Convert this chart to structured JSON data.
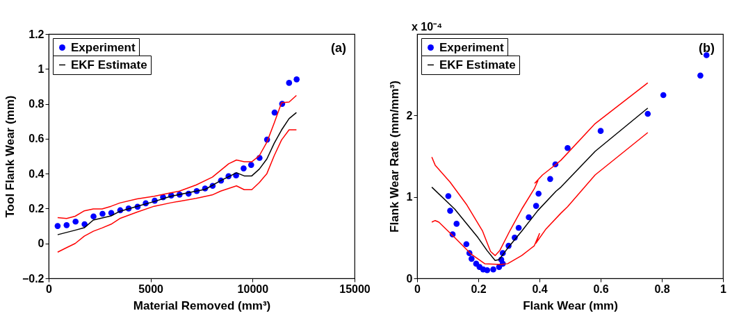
{
  "chart_data": [
    {
      "type": "line",
      "xlabel": "Material Removed (mm³)",
      "ylabel": "Tool Flank Wear (mm)",
      "annotations": [
        "(a)"
      ],
      "xlim": [
        0,
        15000
      ],
      "xticks": [
        0,
        5000,
        10000,
        15000
      ],
      "ylim": [
        -0.2,
        1.2
      ],
      "yticks": [
        -0.2,
        0,
        0.2,
        0.4,
        0.6,
        0.8,
        1,
        1.2
      ],
      "grid": false,
      "legend": "top left",
      "series": [
        {
          "name": "Experiment",
          "type": "scatter",
          "color": "#0000ff",
          "x": [
            440,
            880,
            1320,
            1760,
            2200,
            2640,
            3070,
            3510,
            3920,
            4360,
            4760,
            5200,
            5610,
            6010,
            6420,
            6860,
            7260,
            7670,
            8040,
            8450,
            8820,
            9190,
            9560,
            9930,
            10340,
            10710,
            11080,
            11450,
            11790,
            12160
          ],
          "values": [
            0.1,
            0.105,
            0.125,
            0.11,
            0.155,
            0.17,
            0.175,
            0.19,
            0.2,
            0.21,
            0.23,
            0.245,
            0.265,
            0.275,
            0.28,
            0.285,
            0.3,
            0.315,
            0.33,
            0.36,
            0.385,
            0.39,
            0.43,
            0.45,
            0.49,
            0.595,
            0.75,
            0.8,
            0.92,
            0.94
          ]
        },
        {
          "name": "EKF Estimate",
          "color": "#000000",
          "x": [
            440,
            1300,
            1750,
            2190,
            3060,
            3490,
            4340,
            5170,
            5990,
            6820,
            7680,
            8440,
            9210,
            9590,
            9960,
            10330,
            10700,
            11060,
            11420,
            11790,
            12150
          ],
          "values": [
            0.05,
            0.076,
            0.09,
            0.134,
            0.158,
            0.184,
            0.213,
            0.24,
            0.27,
            0.29,
            0.31,
            0.36,
            0.405,
            0.387,
            0.387,
            0.426,
            0.484,
            0.574,
            0.65,
            0.715,
            0.75
          ]
        },
        {
          "color": "#ff0000",
          "x": [
            440,
            880,
            1300,
            1750,
            2190,
            2620,
            3060,
            3490,
            4340,
            5170,
            5990,
            6420,
            7230,
            8030,
            8830,
            9210,
            9590,
            9960,
            10330,
            10700,
            11060,
            11420,
            11790,
            12150
          ],
          "values": [
            0.148,
            0.143,
            0.156,
            0.187,
            0.198,
            0.198,
            0.213,
            0.232,
            0.255,
            0.27,
            0.29,
            0.3,
            0.335,
            0.38,
            0.457,
            0.478,
            0.468,
            0.468,
            0.503,
            0.58,
            0.69,
            0.806,
            0.81,
            0.848
          ]
        },
        {
          "color": "#ff0000",
          "x": [
            440,
            880,
            1300,
            1750,
            2190,
            2620,
            3060,
            3490,
            4340,
            5170,
            5990,
            7230,
            8020,
            8440,
            9210,
            9590,
            9960,
            10330,
            10700,
            11060,
            11420,
            11790,
            12150
          ],
          "values": [
            -0.05,
            -0.024,
            0,
            0.042,
            0.07,
            0.089,
            0.11,
            0.143,
            0.18,
            0.213,
            0.233,
            0.258,
            0.278,
            0.3,
            0.33,
            0.308,
            0.308,
            0.349,
            0.4,
            0.503,
            0.593,
            0.651,
            0.651
          ]
        }
      ]
    },
    {
      "type": "line",
      "xlabel": "Flank Wear (mm)",
      "ylabel": "Flank Wear Rate (mm/mm³)",
      "annotations": [
        "x 10⁻⁴",
        "(b)"
      ],
      "xlim": [
        0,
        1
      ],
      "xticks": [
        0,
        0.2,
        0.4,
        0.6,
        0.8,
        1
      ],
      "ylim": [
        0,
        3
      ],
      "yticks": [
        0,
        1,
        2
      ],
      "grid": false,
      "legend": "top left",
      "series": [
        {
          "name": "Experiment",
          "type": "scatter",
          "color": "#0000ff",
          "x": [
            0.102,
            0.108,
            0.116,
            0.129,
            0.161,
            0.171,
            0.178,
            0.193,
            0.204,
            0.216,
            0.229,
            0.249,
            0.268,
            0.28,
            0.275,
            0.28,
            0.299,
            0.319,
            0.332,
            0.365,
            0.389,
            0.397,
            0.435,
            0.452,
            0.492,
            0.6,
            0.754,
            0.805,
            0.926,
            0.946
          ],
          "values": [
            1.01,
            0.83,
            0.54,
            0.67,
            0.42,
            0.31,
            0.24,
            0.18,
            0.14,
            0.11,
            0.1,
            0.11,
            0.14,
            0.18,
            0.23,
            0.31,
            0.4,
            0.5,
            0.62,
            0.75,
            0.89,
            1.04,
            1.22,
            1.4,
            1.6,
            1.81,
            2.02,
            2.25,
            2.49,
            2.74
          ]
        },
        {
          "name": "EKF Estimate",
          "color": "#000000",
          "x": [
            0.048,
            0.123,
            0.199,
            0.229,
            0.255,
            0.268,
            0.296,
            0.342,
            0.394,
            0.454,
            0.47,
            0.582,
            0.754
          ],
          "values": [
            1.12,
            0.85,
            0.5,
            0.34,
            0.22,
            0.23,
            0.37,
            0.58,
            0.83,
            1.07,
            1.12,
            1.56,
            2.09
          ]
        },
        {
          "color": "#ff0000",
          "x": [
            0.048,
            0.059,
            0.108,
            0.161,
            0.214,
            0.24,
            0.255,
            0.27,
            0.304,
            0.342,
            0.383,
            0.395,
            0.385,
            0.41,
            0.454,
            0.47,
            0.582,
            0.754
          ],
          "values": [
            1.49,
            1.39,
            1.18,
            0.91,
            0.58,
            0.33,
            0.28,
            0.34,
            0.59,
            0.85,
            1.1,
            1.2,
            1.17,
            1.27,
            1.4,
            1.45,
            1.9,
            2.4
          ]
        },
        {
          "color": "#ff0000",
          "x": [
            0.048,
            0.059,
            0.071,
            0.123,
            0.176,
            0.221,
            0.274,
            0.296,
            0.342,
            0.383,
            0.4,
            0.388,
            0.42,
            0.47,
            0.492,
            0.582,
            0.754
          ],
          "values": [
            0.69,
            0.71,
            0.69,
            0.5,
            0.3,
            0.18,
            0.17,
            0.18,
            0.28,
            0.4,
            0.55,
            0.43,
            0.6,
            0.8,
            0.88,
            1.27,
            1.79
          ]
        }
      ]
    }
  ]
}
